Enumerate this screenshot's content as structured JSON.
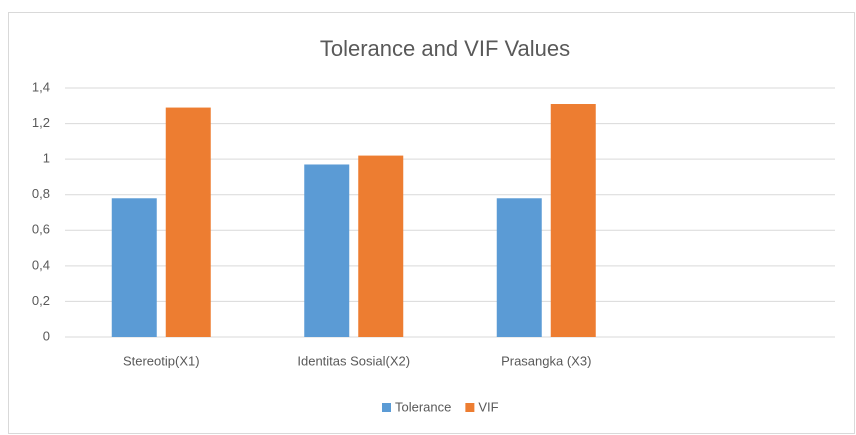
{
  "chart_data": {
    "type": "bar",
    "title": "Tolerance and VIF Values",
    "categories": [
      "Stereotip(X1)",
      "Identitas Sosial(X2)",
      "Prasangka (X3)",
      null
    ],
    "series": [
      {
        "name": "Tolerance",
        "color": "#5b9bd5",
        "values": [
          0.78,
          0.97,
          0.78,
          null
        ]
      },
      {
        "name": "VIF",
        "color": "#ed7d31",
        "values": [
          1.29,
          1.02,
          1.31,
          null
        ]
      }
    ],
    "ylim": [
      0,
      1.4
    ],
    "yticks": [
      0,
      {
        "value": 0.2,
        "label": "0,2"
      },
      {
        "value": 0.4,
        "label": "0,4"
      },
      {
        "value": 0.6,
        "label": "0,6"
      },
      {
        "value": 0.8,
        "label": "0,8"
      },
      1,
      {
        "value": 1.2,
        "label": "1,2"
      },
      {
        "value": 1.4,
        "label": "1,4"
      }
    ],
    "grid": true,
    "legend": "bottom"
  }
}
